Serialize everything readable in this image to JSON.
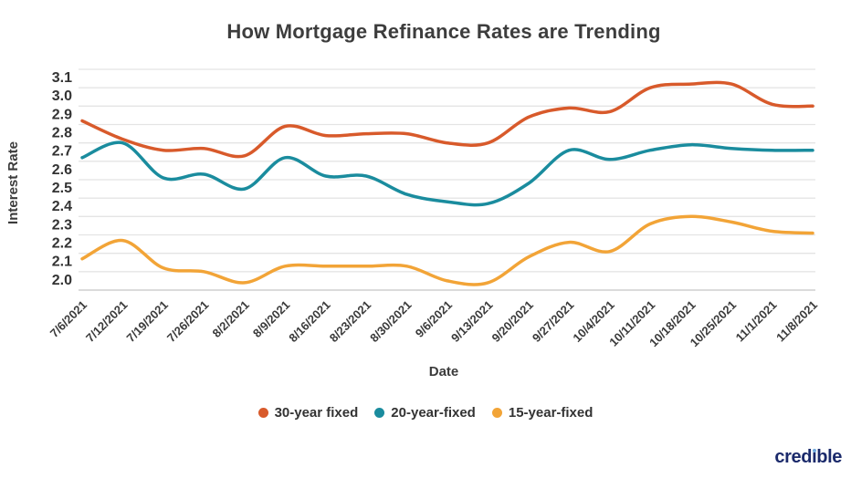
{
  "title": "How Mortgage Refinance Rates are Trending",
  "logo": {
    "text": "credible"
  },
  "colors": {
    "series_30yr": "#d85a2b",
    "series_20yr": "#1a8c9e",
    "series_15yr": "#f2a437",
    "gridline": "#e4e4e4",
    "axis_line": "#cfcfcf",
    "text": "#3b3b3b",
    "title_text": "#3d3d3d",
    "logo_navy": "#1b2a6b",
    "logo_dot_blue": "#6fa8dc"
  },
  "chart_data": {
    "type": "line",
    "title": "How Mortgage Refinance Rates are Trending",
    "xlabel": "Date",
    "ylabel": "Interest Rate",
    "x": [
      "7/6/2021",
      "7/12/2021",
      "7/19/2021",
      "7/26/2021",
      "8/2/2021",
      "8/9/2021",
      "8/16/2021",
      "8/23/2021",
      "8/30/2021",
      "9/6/2021",
      "9/13/2021",
      "9/20/2021",
      "9/27/2021",
      "10/4/2021",
      "10/11/2021",
      "10/18/2021",
      "10/25/2021",
      "11/1/2021",
      "11/8/2021"
    ],
    "series": [
      {
        "name": "30-year fixed",
        "color": "#d85a2b",
        "values": [
          2.82,
          2.72,
          2.66,
          2.67,
          2.63,
          2.79,
          2.74,
          2.75,
          2.75,
          2.7,
          2.7,
          2.84,
          2.89,
          2.87,
          3.0,
          3.02,
          3.02,
          2.91,
          2.9
        ]
      },
      {
        "name": "20-year-fixed",
        "color": "#1a8c9e",
        "values": [
          2.62,
          2.7,
          2.51,
          2.53,
          2.45,
          2.62,
          2.52,
          2.52,
          2.42,
          2.38,
          2.37,
          2.48,
          2.66,
          2.61,
          2.66,
          2.69,
          2.67,
          2.66,
          2.66
        ]
      },
      {
        "name": "15-year-fixed",
        "color": "#f2a437",
        "values": [
          2.07,
          2.17,
          2.02,
          2.0,
          1.94,
          2.03,
          2.03,
          2.03,
          2.03,
          1.95,
          1.94,
          2.08,
          2.16,
          2.11,
          2.26,
          2.3,
          2.27,
          2.22,
          2.21
        ]
      }
    ],
    "yticks": [
      2.0,
      2.1,
      2.2,
      2.3,
      2.4,
      2.5,
      2.6,
      2.7,
      2.8,
      2.9,
      3.0,
      3.1
    ],
    "ylim": [
      1.9,
      3.11
    ],
    "grid": true,
    "legend_position": "bottom"
  }
}
